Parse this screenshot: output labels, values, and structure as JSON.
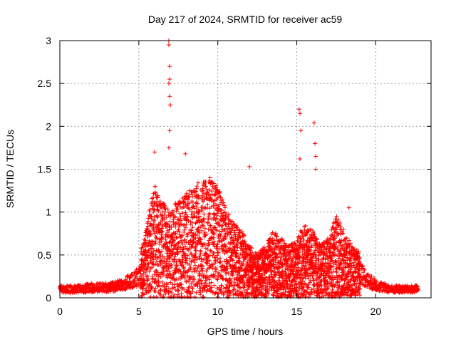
{
  "chart_data": {
    "type": "scatter",
    "title": "Day 217 of 2024, SRMTID for receiver ac59",
    "xlabel": "GPS time / hours",
    "ylabel": "SRMTID / TECUs",
    "xlim": [
      0,
      23.5
    ],
    "ylim": [
      0,
      3
    ],
    "grid": true,
    "marker": "+",
    "color": "#ff0000",
    "x_ticks": [
      0,
      5,
      10,
      15,
      20
    ],
    "y_ticks": [
      0,
      0.5,
      1,
      1.5,
      2,
      2.5,
      3
    ],
    "series": [
      {
        "name": "SRMTID",
        "envelope": {
          "hours": [
            0,
            1,
            2,
            3,
            4,
            5,
            5.5,
            6,
            6.5,
            7,
            7.5,
            8,
            8.5,
            9,
            9.5,
            10,
            10.5,
            11,
            11.5,
            12,
            12.5,
            13,
            13.5,
            14,
            14.5,
            15,
            15.5,
            16,
            16.5,
            17,
            17.5,
            18,
            18.5,
            19,
            19.5,
            20,
            20.5,
            21,
            21.5,
            22,
            22.7
          ],
          "typical": [
            0.1,
            0.1,
            0.12,
            0.12,
            0.15,
            0.25,
            0.5,
            0.75,
            0.65,
            0.6,
            0.65,
            0.7,
            0.75,
            0.8,
            0.85,
            0.75,
            0.6,
            0.5,
            0.45,
            0.35,
            0.3,
            0.35,
            0.45,
            0.4,
            0.35,
            0.4,
            0.5,
            0.45,
            0.35,
            0.4,
            0.55,
            0.45,
            0.35,
            0.3,
            0.2,
            0.15,
            0.12,
            0.1,
            0.1,
            0.1,
            0.1
          ]
        },
        "peaks": [
          {
            "x": 6.9,
            "y": 3.0
          },
          {
            "x": 6.9,
            "y": 2.95
          },
          {
            "x": 6.95,
            "y": 2.7
          },
          {
            "x": 6.95,
            "y": 2.55
          },
          {
            "x": 6.9,
            "y": 2.5
          },
          {
            "x": 6.95,
            "y": 2.35
          },
          {
            "x": 7.0,
            "y": 2.25
          },
          {
            "x": 6.95,
            "y": 1.95
          },
          {
            "x": 6.9,
            "y": 1.75
          },
          {
            "x": 6.0,
            "y": 1.7
          },
          {
            "x": 7.95,
            "y": 1.68
          },
          {
            "x": 12.0,
            "y": 1.53
          },
          {
            "x": 9.5,
            "y": 1.4
          },
          {
            "x": 15.15,
            "y": 2.2
          },
          {
            "x": 15.2,
            "y": 2.15
          },
          {
            "x": 15.25,
            "y": 1.95
          },
          {
            "x": 15.2,
            "y": 1.62
          },
          {
            "x": 16.1,
            "y": 2.04
          },
          {
            "x": 16.15,
            "y": 1.8
          },
          {
            "x": 16.2,
            "y": 1.65
          },
          {
            "x": 16.2,
            "y": 1.5
          },
          {
            "x": 18.3,
            "y": 1.05
          }
        ]
      }
    ]
  }
}
